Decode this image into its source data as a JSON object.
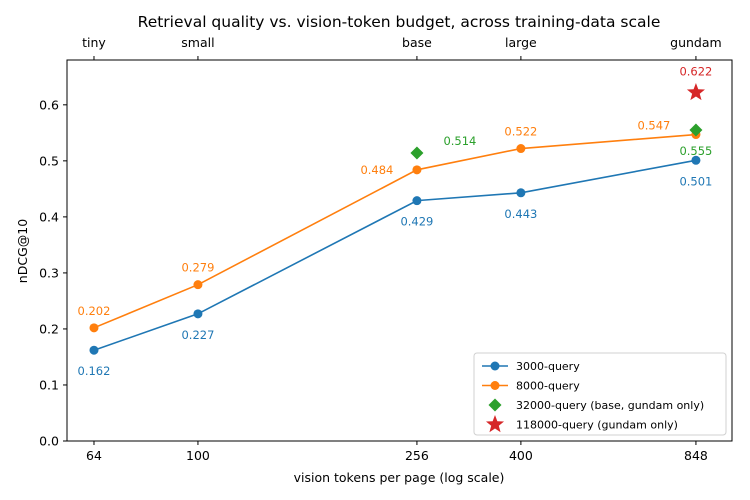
{
  "chart_data": {
    "type": "line",
    "title": "Retrieval quality vs. vision-token budget, across training-data scale",
    "xlabel": "vision tokens per page (log scale)",
    "ylabel": "nDCG@10",
    "x_scale": "log",
    "xlim": [
      57,
      990
    ],
    "ylim": [
      0.0,
      0.68
    ],
    "x_ticks": [
      64,
      100,
      256,
      400,
      848
    ],
    "x_tick_labels": [
      "64",
      "100",
      "256",
      "400",
      "848"
    ],
    "top_ticks": [
      64,
      100,
      256,
      400,
      848
    ],
    "top_tick_labels": [
      "tiny",
      "small",
      "base",
      "large",
      "gundam"
    ],
    "y_ticks": [
      0.0,
      0.1,
      0.2,
      0.3,
      0.4,
      0.5,
      0.6
    ],
    "y_tick_labels": [
      "0.0",
      "0.1",
      "0.2",
      "0.3",
      "0.4",
      "0.5",
      "0.6"
    ],
    "grid": false,
    "legend_position": "bottom-right",
    "series": [
      {
        "name": "3000-query",
        "color": "#1f77b4",
        "marker": "circle",
        "line": true,
        "x": [
          64,
          100,
          256,
          400,
          848
        ],
        "values": [
          0.162,
          0.227,
          0.429,
          0.443,
          0.501
        ],
        "labels": [
          "0.162",
          "0.227",
          "0.429",
          "0.443",
          "0.501"
        ],
        "label_position": "below"
      },
      {
        "name": "8000-query",
        "color": "#ff7f0e",
        "marker": "circle",
        "line": true,
        "x": [
          64,
          100,
          256,
          400,
          848
        ],
        "values": [
          0.202,
          0.279,
          0.484,
          0.522,
          0.547
        ],
        "labels": [
          "0.202",
          "0.279",
          "0.484",
          "0.522",
          "0.547"
        ],
        "label_position": "above-left"
      },
      {
        "name": "32000-query (base, gundam only)",
        "color": "#2ca02c",
        "marker": "diamond",
        "line": false,
        "x": [
          256,
          848
        ],
        "values": [
          0.514,
          0.555
        ],
        "labels": [
          "0.514",
          "0.555"
        ],
        "label_position": "beside"
      },
      {
        "name": "118000-query (gundam only)",
        "color": "#d62728",
        "marker": "star",
        "line": false,
        "x": [
          848
        ],
        "values": [
          0.622
        ],
        "labels": [
          "0.622"
        ],
        "label_position": "above"
      }
    ]
  }
}
